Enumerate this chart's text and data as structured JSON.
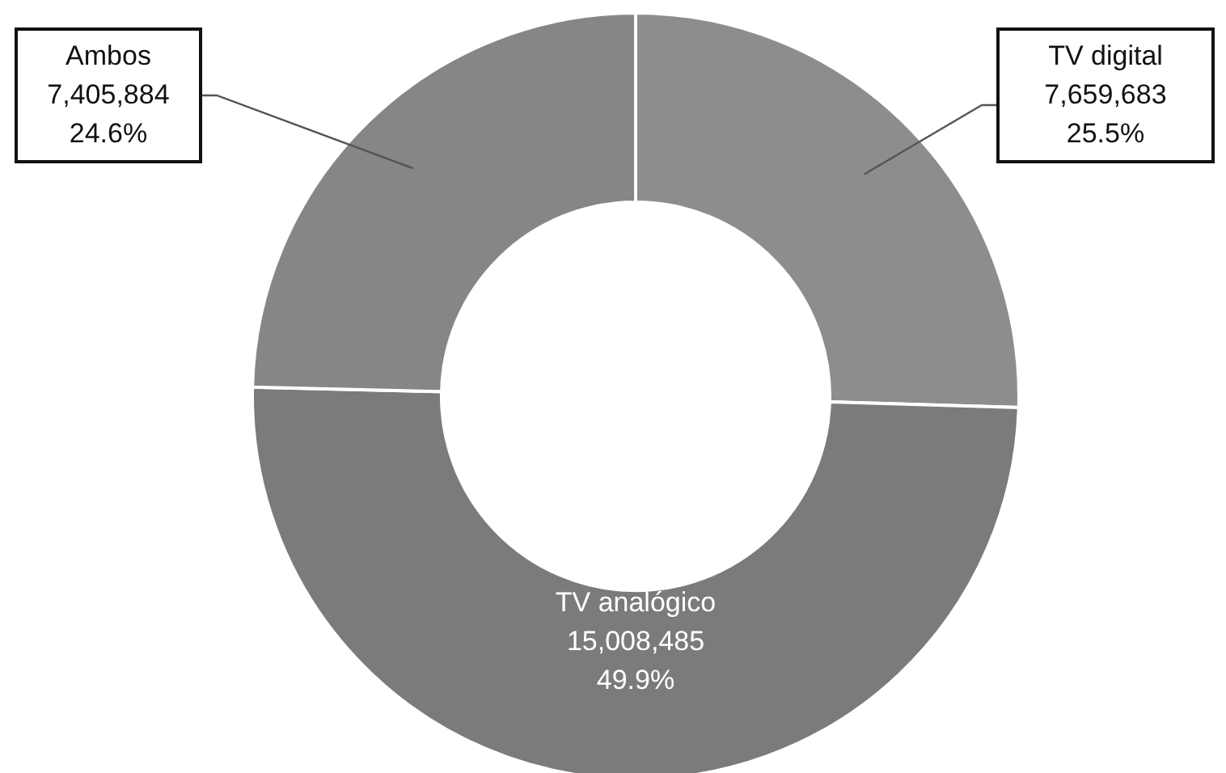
{
  "chart_data": {
    "type": "donut",
    "categories": [
      "TV digital",
      "TV analógico",
      "Ambos"
    ],
    "values": [
      7659683,
      15008485,
      7405884
    ],
    "value_labels": [
      "7,659,683\n25.5%",
      "15,008,485\n49.9%",
      "7,405,884\n24.6%"
    ],
    "colors": [
      "#8d8d8d",
      "#7b7b7b",
      "#868686"
    ],
    "legend": false
  }
}
